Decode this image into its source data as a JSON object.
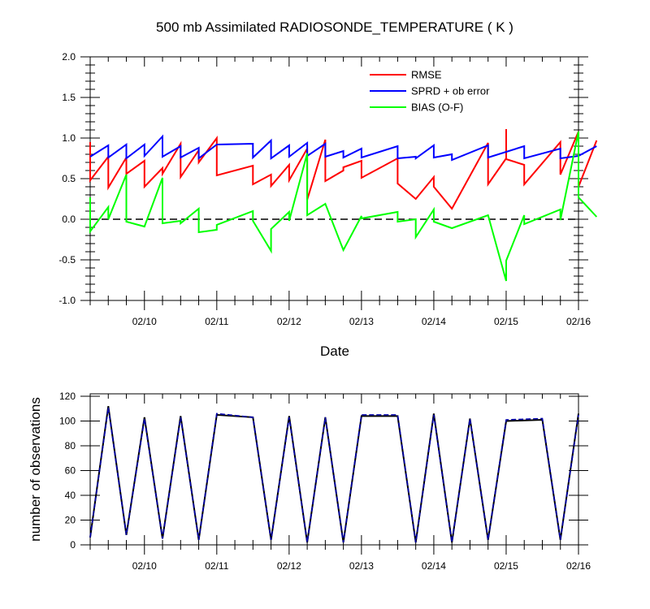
{
  "chart_data": [
    {
      "type": "line",
      "title": "500 mb Assimilated RADIOSONDE_TEMPERATURE ( K )",
      "xlabel": "Date",
      "ylabel": "",
      "x_range": [
        "02/09 06:00",
        "02/16 00:00"
      ],
      "x_tick_labels": [
        "02/10",
        "02/11",
        "02/12",
        "02/13",
        "02/14",
        "02/15",
        "02/16"
      ],
      "ylim": [
        -1.0,
        2.0
      ],
      "y_tick_labels": [
        "2.0",
        "1.5",
        "1.0",
        "0.5",
        "0.0",
        "-0.5",
        "-1.0"
      ],
      "reference_line": {
        "y": 0.0,
        "style": "dashed",
        "color": "#000000"
      },
      "legend_position": "top-right",
      "series": [
        {
          "name": "RMSE",
          "color": "#ff0000",
          "points": [
            [
              "02/09 06:00",
              0.95
            ],
            [
              "02/09 06:00",
              0.48
            ],
            [
              "02/09 12:00",
              0.77
            ],
            [
              "02/09 12:00",
              0.39
            ],
            [
              "02/09 18:00",
              0.76
            ],
            [
              "02/09 18:00",
              0.56
            ],
            [
              "02/10 00:00",
              0.72
            ],
            [
              "02/10 00:00",
              0.4
            ],
            [
              "02/10 06:00",
              0.63
            ],
            [
              "02/10 06:00",
              0.56
            ],
            [
              "02/10 12:00",
              0.93
            ],
            [
              "02/10 12:00",
              0.52
            ],
            [
              "02/10 18:00",
              0.85
            ],
            [
              "02/10 18:00",
              0.7
            ],
            [
              "02/11 00:00",
              1.0
            ],
            [
              "02/11 00:00",
              0.54
            ],
            [
              "02/11 12:00",
              0.66
            ],
            [
              "02/11 12:00",
              0.43
            ],
            [
              "02/11 18:00",
              0.55
            ],
            [
              "02/11 18:00",
              0.41
            ],
            [
              "02/12 00:00",
              0.67
            ],
            [
              "02/12 00:00",
              0.48
            ],
            [
              "02/12 06:00",
              0.87
            ],
            [
              "02/12 06:00",
              0.24
            ],
            [
              "02/12 12:00",
              0.98
            ],
            [
              "02/12 12:00",
              0.47
            ],
            [
              "02/12 18:00",
              0.6
            ],
            [
              "02/12 18:00",
              0.64
            ],
            [
              "02/13 00:00",
              0.72
            ],
            [
              "02/13 00:00",
              0.51
            ],
            [
              "02/13 12:00",
              0.75
            ],
            [
              "02/13 12:00",
              0.44
            ],
            [
              "02/13 18:00",
              0.25
            ],
            [
              "02/14 00:00",
              0.52
            ],
            [
              "02/14 00:00",
              0.4
            ],
            [
              "02/14 06:00",
              0.13
            ],
            [
              "02/14 18:00",
              0.94
            ],
            [
              "02/14 18:00",
              0.43
            ],
            [
              "02/15 00:00",
              0.75
            ],
            [
              "02/15 00:00",
              1.11
            ],
            [
              "02/15 00:00",
              0.74
            ],
            [
              "02/15 06:00",
              0.67
            ],
            [
              "02/15 06:00",
              0.43
            ],
            [
              "02/15 18:00",
              0.95
            ],
            [
              "02/15 18:00",
              0.55
            ],
            [
              "02/16 00:00",
              1.08
            ],
            [
              "02/16 00:00",
              0.4
            ],
            [
              "02/16 06:00",
              0.97
            ]
          ]
        },
        {
          "name": "SPRD + ob error",
          "color": "#0000ff",
          "points": [
            [
              "02/09 06:00",
              0.77
            ],
            [
              "02/09 12:00",
              0.91
            ],
            [
              "02/09 12:00",
              0.76
            ],
            [
              "02/09 18:00",
              0.92
            ],
            [
              "02/09 18:00",
              0.75
            ],
            [
              "02/10 00:00",
              0.92
            ],
            [
              "02/10 00:00",
              0.78
            ],
            [
              "02/10 06:00",
              1.02
            ],
            [
              "02/10 06:00",
              0.77
            ],
            [
              "02/10 12:00",
              0.9
            ],
            [
              "02/10 12:00",
              0.76
            ],
            [
              "02/10 18:00",
              0.88
            ],
            [
              "02/10 18:00",
              0.75
            ],
            [
              "02/11 00:00",
              0.92
            ],
            [
              "02/11 12:00",
              0.93
            ],
            [
              "02/11 12:00",
              0.76
            ],
            [
              "02/11 18:00",
              0.97
            ],
            [
              "02/11 18:00",
              0.75
            ],
            [
              "02/12 00:00",
              0.91
            ],
            [
              "02/12 00:00",
              0.77
            ],
            [
              "02/12 06:00",
              0.94
            ],
            [
              "02/12 06:00",
              0.78
            ],
            [
              "02/12 12:00",
              0.93
            ],
            [
              "02/12 12:00",
              0.77
            ],
            [
              "02/12 18:00",
              0.84
            ],
            [
              "02/12 18:00",
              0.76
            ],
            [
              "02/13 00:00",
              0.87
            ],
            [
              "02/13 00:00",
              0.76
            ],
            [
              "02/13 12:00",
              0.9
            ],
            [
              "02/13 12:00",
              0.75
            ],
            [
              "02/13 18:00",
              0.77
            ],
            [
              "02/13 18:00",
              0.75
            ],
            [
              "02/14 00:00",
              0.91
            ],
            [
              "02/14 00:00",
              0.76
            ],
            [
              "02/14 06:00",
              0.8
            ],
            [
              "02/14 06:00",
              0.73
            ],
            [
              "02/14 18:00",
              0.91
            ],
            [
              "02/14 18:00",
              0.76
            ],
            [
              "02/15 06:00",
              0.9
            ],
            [
              "02/15 06:00",
              0.75
            ],
            [
              "02/15 18:00",
              0.87
            ],
            [
              "02/15 18:00",
              0.75
            ],
            [
              "02/16 00:00",
              0.78
            ],
            [
              "02/16 06:00",
              0.9
            ]
          ]
        },
        {
          "name": "BIAS (O-F)",
          "color": "#00ff00",
          "points": [
            [
              "02/09 06:00",
              0.27
            ],
            [
              "02/09 06:00",
              -0.15
            ],
            [
              "02/09 12:00",
              0.15
            ],
            [
              "02/09 12:00",
              0.0
            ],
            [
              "02/09 18:00",
              0.55
            ],
            [
              "02/09 18:00",
              -0.03
            ],
            [
              "02/10 00:00",
              -0.09
            ],
            [
              "02/10 06:00",
              0.51
            ],
            [
              "02/10 06:00",
              -0.05
            ],
            [
              "02/10 12:00",
              -0.02
            ],
            [
              "02/10 12:00",
              -0.05
            ],
            [
              "02/10 18:00",
              0.13
            ],
            [
              "02/10 18:00",
              -0.16
            ],
            [
              "02/11 00:00",
              -0.13
            ],
            [
              "02/11 00:00",
              -0.07
            ],
            [
              "02/11 12:00",
              0.1
            ],
            [
              "02/11 12:00",
              -0.02
            ],
            [
              "02/11 18:00",
              -0.39
            ],
            [
              "02/11 18:00",
              -0.12
            ],
            [
              "02/12 00:00",
              0.09
            ],
            [
              "02/12 00:00",
              -0.02
            ],
            [
              "02/12 06:00",
              0.81
            ],
            [
              "02/12 06:00",
              0.05
            ],
            [
              "02/12 12:00",
              0.19
            ],
            [
              "02/12 18:00",
              -0.38
            ],
            [
              "02/13 00:00",
              0.04
            ],
            [
              "02/13 00:00",
              0.01
            ],
            [
              "02/13 12:00",
              0.09
            ],
            [
              "02/13 12:00",
              -0.03
            ],
            [
              "02/13 18:00",
              0.0
            ],
            [
              "02/13 18:00",
              -0.22
            ],
            [
              "02/14 00:00",
              0.12
            ],
            [
              "02/14 00:00",
              -0.03
            ],
            [
              "02/14 06:00",
              -0.11
            ],
            [
              "02/14 18:00",
              0.05
            ],
            [
              "02/15 00:00",
              -0.76
            ],
            [
              "02/15 00:00",
              -0.51
            ],
            [
              "02/15 06:00",
              0.05
            ],
            [
              "02/15 06:00",
              -0.06
            ],
            [
              "02/15 18:00",
              0.12
            ],
            [
              "02/15 18:00",
              -0.01
            ],
            [
              "02/16 00:00",
              1.08
            ],
            [
              "02/16 00:00",
              0.27
            ],
            [
              "02/16 06:00",
              0.03
            ]
          ]
        }
      ]
    },
    {
      "type": "line",
      "title": "",
      "xlabel": "",
      "ylabel": "number of observations",
      "x_range": [
        "02/09 06:00",
        "02/16 00:00"
      ],
      "x_tick_labels": [
        "02/10",
        "02/11",
        "02/12",
        "02/13",
        "02/14",
        "02/15",
        "02/16"
      ],
      "ylim": [
        0,
        120
      ],
      "y_tick_labels": [
        "120",
        "100",
        "80",
        "60",
        "40",
        "20",
        "0"
      ],
      "series": [
        {
          "color": "#000000",
          "style": "solid",
          "points": [
            [
              "02/09 06:00",
              6
            ],
            [
              "02/09 12:00",
              112
            ],
            [
              "02/09 18:00",
              8
            ],
            [
              "02/10 00:00",
              103
            ],
            [
              "02/10 06:00",
              5
            ],
            [
              "02/10 12:00",
              104
            ],
            [
              "02/10 18:00",
              4
            ],
            [
              "02/11 00:00",
              105
            ],
            [
              "02/11 12:00",
              103
            ],
            [
              "02/11 18:00",
              4
            ],
            [
              "02/12 00:00",
              104
            ],
            [
              "02/12 06:00",
              2
            ],
            [
              "02/12 12:00",
              103
            ],
            [
              "02/12 18:00",
              2
            ],
            [
              "02/13 00:00",
              104
            ],
            [
              "02/13 12:00",
              104
            ],
            [
              "02/13 18:00",
              2
            ],
            [
              "02/14 00:00",
              106
            ],
            [
              "02/14 06:00",
              2
            ],
            [
              "02/14 12:00",
              102
            ],
            [
              "02/14 18:00",
              4
            ],
            [
              "02/15 00:00",
              100
            ],
            [
              "02/15 12:00",
              101
            ],
            [
              "02/15 18:00",
              4
            ],
            [
              "02/16 00:00",
              106
            ]
          ]
        },
        {
          "color": "#0000aa",
          "style": "dashed",
          "points": [
            [
              "02/09 06:00",
              6
            ],
            [
              "02/09 12:00",
              111
            ],
            [
              "02/09 18:00",
              8
            ],
            [
              "02/10 00:00",
              102
            ],
            [
              "02/10 06:00",
              5
            ],
            [
              "02/10 12:00",
              103
            ],
            [
              "02/10 18:00",
              4
            ],
            [
              "02/11 00:00",
              106
            ],
            [
              "02/11 12:00",
              103
            ],
            [
              "02/11 18:00",
              4
            ],
            [
              "02/12 00:00",
              103
            ],
            [
              "02/12 06:00",
              2
            ],
            [
              "02/12 12:00",
              103
            ],
            [
              "02/12 18:00",
              2
            ],
            [
              "02/13 00:00",
              105
            ],
            [
              "02/13 12:00",
              105
            ],
            [
              "02/13 18:00",
              2
            ],
            [
              "02/14 00:00",
              105
            ],
            [
              "02/14 06:00",
              2
            ],
            [
              "02/14 12:00",
              102
            ],
            [
              "02/14 18:00",
              4
            ],
            [
              "02/15 00:00",
              101
            ],
            [
              "02/15 12:00",
              102
            ],
            [
              "02/15 18:00",
              4
            ],
            [
              "02/16 00:00",
              105
            ]
          ]
        }
      ]
    }
  ]
}
